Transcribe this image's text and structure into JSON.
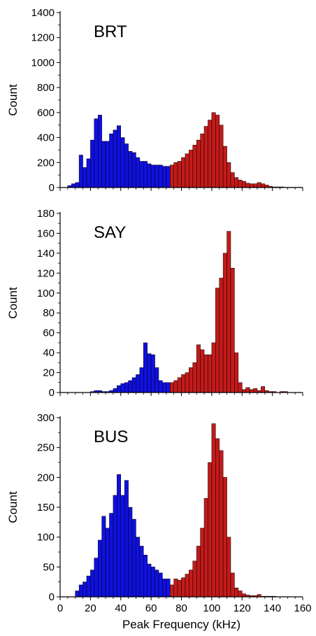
{
  "chart_data": [
    {
      "type": "bar",
      "title": "BRT",
      "xlabel": "",
      "ylabel": "Count",
      "xlim": [
        0,
        160
      ],
      "ylim": [
        0,
        1400
      ],
      "yticks": [
        0,
        200,
        400,
        600,
        800,
        1000,
        1200,
        1400
      ],
      "xticks": [],
      "bin_width": 2.5,
      "colors": {
        "low": "#1010e0",
        "high": "#c41a1a"
      },
      "series": [
        {
          "color": "#1010e0",
          "x": [
            5,
            7.5,
            10,
            12.5,
            15,
            17.5,
            20,
            22.5,
            25,
            27.5,
            30,
            32.5,
            35,
            37.5,
            40,
            42.5,
            45,
            47.5,
            50,
            52.5,
            55,
            57.5,
            60,
            62.5,
            65,
            67.5,
            70
          ],
          "values": [
            15,
            30,
            40,
            260,
            160,
            230,
            380,
            550,
            580,
            370,
            370,
            430,
            460,
            495,
            400,
            350,
            290,
            280,
            240,
            210,
            210,
            190,
            180,
            180,
            180,
            170,
            170
          ]
        },
        {
          "color": "#c41a1a",
          "x": [
            72.5,
            75,
            77.5,
            80,
            82.5,
            85,
            87.5,
            90,
            92.5,
            95,
            97.5,
            100,
            102.5,
            105,
            107.5,
            110,
            112.5,
            115,
            117.5,
            120,
            122.5,
            125,
            127.5,
            130,
            132.5,
            135,
            137.5,
            140,
            142.5,
            145,
            147.5,
            150,
            152.5,
            155,
            157.5
          ],
          "values": [
            180,
            200,
            210,
            240,
            270,
            300,
            340,
            380,
            430,
            490,
            540,
            600,
            580,
            500,
            330,
            200,
            120,
            80,
            60,
            50,
            35,
            30,
            30,
            40,
            30,
            20,
            10,
            5,
            5,
            5,
            2,
            2,
            2,
            2,
            2
          ]
        }
      ]
    },
    {
      "type": "bar",
      "title": "SAY",
      "xlabel": "",
      "ylabel": "Count",
      "xlim": [
        0,
        160
      ],
      "ylim": [
        0,
        180
      ],
      "yticks": [
        0,
        20,
        40,
        60,
        80,
        100,
        120,
        140,
        160,
        180
      ],
      "xticks": [],
      "bin_width": 2.5,
      "colors": {
        "low": "#1010e0",
        "high": "#c41a1a"
      },
      "series": [
        {
          "color": "#1010e0",
          "x": [
            20,
            22.5,
            25,
            27.5,
            30,
            32.5,
            35,
            37.5,
            40,
            42.5,
            45,
            47.5,
            50,
            52.5,
            55,
            57.5,
            60,
            62.5,
            65,
            67.5,
            70
          ],
          "values": [
            1,
            2,
            2,
            1,
            1,
            2,
            4,
            7,
            9,
            10,
            12,
            15,
            18,
            25,
            50,
            39,
            38,
            25,
            12,
            10,
            10
          ]
        },
        {
          "color": "#c41a1a",
          "x": [
            72.5,
            75,
            77.5,
            80,
            82.5,
            85,
            87.5,
            90,
            92.5,
            95,
            97.5,
            100,
            102.5,
            105,
            107.5,
            110,
            112.5,
            115,
            117.5,
            120,
            122.5,
            125,
            127.5,
            130,
            132.5,
            135,
            137.5,
            140,
            145,
            147.5
          ],
          "values": [
            10,
            12,
            15,
            18,
            20,
            25,
            30,
            48,
            43,
            38,
            38,
            50,
            105,
            115,
            140,
            162,
            125,
            40,
            10,
            3,
            5,
            3,
            4,
            2,
            6,
            2,
            1,
            1,
            1,
            1
          ]
        }
      ]
    },
    {
      "type": "bar",
      "title": "BUS",
      "xlabel": "Peak Frequency (kHz)",
      "ylabel": "Count",
      "xlim": [
        0,
        160
      ],
      "ylim": [
        0,
        300
      ],
      "yticks": [
        0,
        50,
        100,
        150,
        200,
        250,
        300
      ],
      "xticks": [
        0,
        20,
        40,
        60,
        80,
        100,
        120,
        140,
        160
      ],
      "bin_width": 2.5,
      "colors": {
        "low": "#1010e0",
        "high": "#c41a1a"
      },
      "series": [
        {
          "color": "#1010e0",
          "x": [
            10,
            12.5,
            15,
            17.5,
            20,
            22.5,
            25,
            27.5,
            30,
            32.5,
            35,
            37.5,
            40,
            42.5,
            45,
            47.5,
            50,
            52.5,
            55,
            57.5,
            60,
            62.5,
            65,
            67.5,
            70
          ],
          "values": [
            10,
            20,
            25,
            35,
            45,
            65,
            95,
            135,
            115,
            140,
            170,
            205,
            170,
            195,
            150,
            130,
            100,
            85,
            70,
            55,
            50,
            45,
            40,
            30,
            30
          ]
        },
        {
          "color": "#c41a1a",
          "x": [
            72.5,
            75,
            77.5,
            80,
            82.5,
            85,
            87.5,
            90,
            92.5,
            95,
            97.5,
            100,
            102.5,
            105,
            107.5,
            110,
            112.5,
            115,
            117.5,
            120,
            122.5,
            125,
            127.5,
            130,
            132.5,
            135,
            137.5,
            140
          ],
          "values": [
            20,
            30,
            28,
            32,
            38,
            45,
            60,
            85,
            115,
            165,
            225,
            290,
            265,
            245,
            200,
            100,
            40,
            15,
            10,
            5,
            3,
            2,
            2,
            4,
            1,
            1,
            1,
            1
          ]
        }
      ]
    }
  ]
}
